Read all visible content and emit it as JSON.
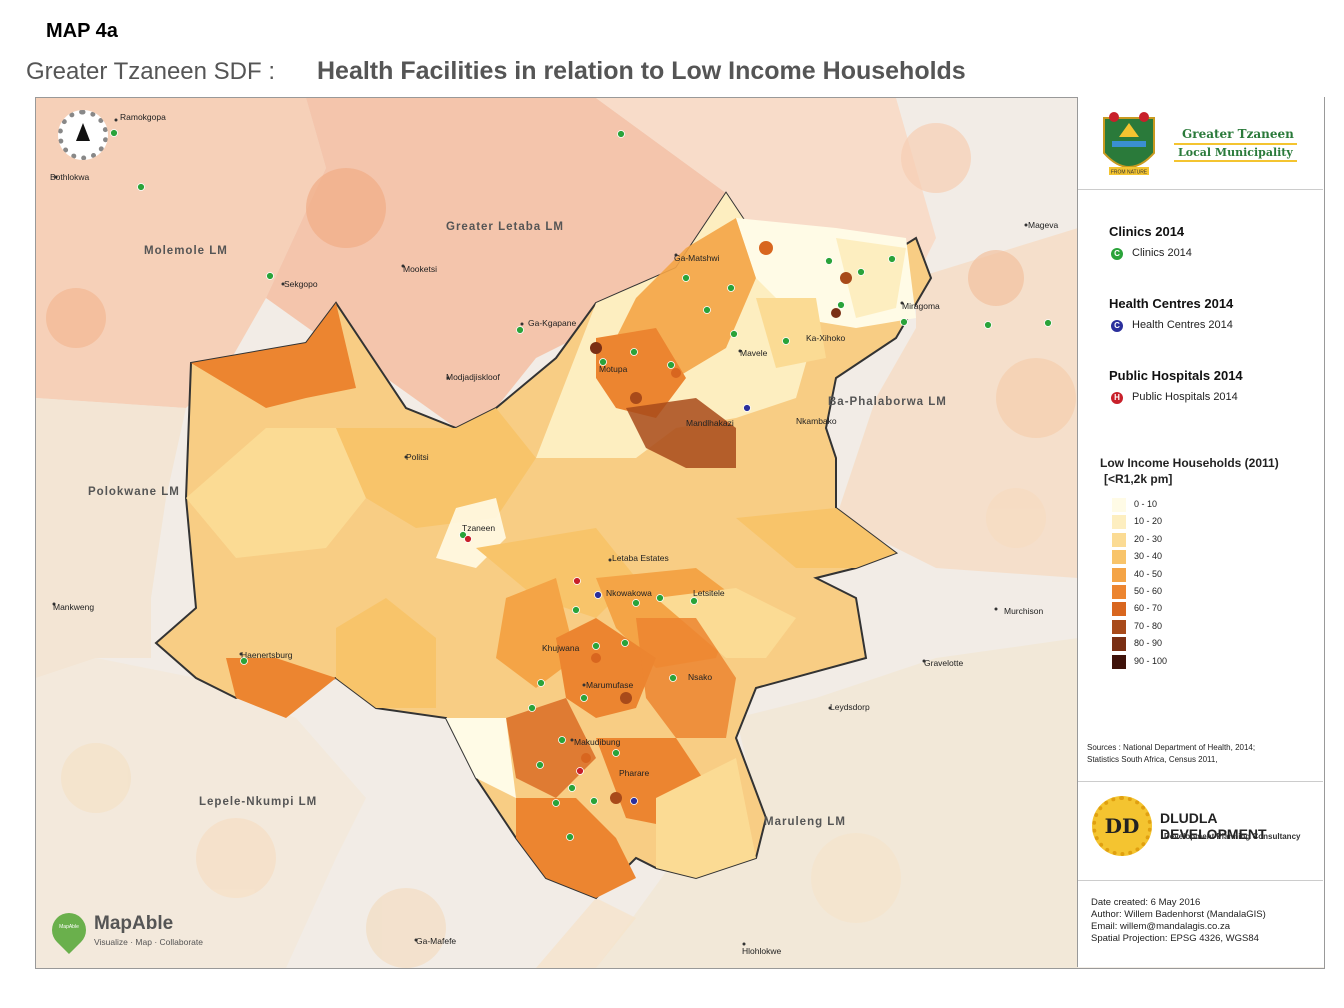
{
  "header": {
    "map_number": "MAP 4a",
    "subtitle": "Greater Tzaneen SDF :",
    "title": "Health Facilities  in relation to Low Income Households"
  },
  "map": {
    "lm_labels": [
      "Molemole LM",
      "Greater Letaba LM",
      "Polokwane LM",
      "Ba-Phalaborwa LM",
      "Lepele-Nkumpi LM",
      "Maruleng LM"
    ],
    "towns": [
      "Ramokgopa",
      "Bothlokwa",
      "Sekgopo",
      "Mooketsi",
      "Ga-Kgapane",
      "Modjadjiskloof",
      "Politsi",
      "Tzaneen",
      "Letaba Estates",
      "Nkowakowa",
      "Letsitele",
      "Khujwana",
      "Marumufase",
      "Nsako",
      "Makudibung",
      "Pharare",
      "Haenertsburg",
      "Mankweng",
      "Ga-Matshwi",
      "Motupa",
      "Mavele",
      "Ka-Xihoko",
      "Miragoma",
      "Mandlhakazi",
      "Nkambako",
      "Mageva",
      "Murchison",
      "Gravelotte",
      "Leydsdorp",
      "Ga-Mafefe",
      "Hlohlokwe"
    ],
    "compass_letter": "N",
    "mapable": {
      "brand": "MapAble",
      "tagline": "Visualize · Map · Collaborate",
      "badge": "MapAble"
    }
  },
  "legend": {
    "municipality_name_line1": "Greater Tzaneen",
    "municipality_name_line2": "Local Municipality",
    "crest_motto": "FROM NATURE",
    "clinics_title": "Clinics 2014",
    "clinics_label": "Clinics 2014",
    "clinics_symbol": "C",
    "health_centres_title": "Health Centres 2014",
    "health_centres_label": "Health Centres 2014",
    "health_centres_symbol": "C",
    "hospitals_title": "Public Hospitals 2014",
    "hospitals_label": "Public Hospitals 2014",
    "hospitals_symbol": "H",
    "income_title_line1": "Low Income Households (2011)",
    "income_title_line2": "[<R1,2k pm]",
    "ramp": [
      {
        "label": "0 - 10",
        "color": "#fffbe6"
      },
      {
        "label": "10 - 20",
        "color": "#fdeec0"
      },
      {
        "label": "20 - 30",
        "color": "#fbdb94"
      },
      {
        "label": "30 - 40",
        "color": "#f8c46a"
      },
      {
        "label": "40 - 50",
        "color": "#f4a446"
      },
      {
        "label": "50 - 60",
        "color": "#ec8530"
      },
      {
        "label": "60 - 70",
        "color": "#d8661f"
      },
      {
        "label": "70 - 80",
        "color": "#a84a1a"
      },
      {
        "label": "80 - 90",
        "color": "#7a2f14"
      },
      {
        "label": "90 - 100",
        "color": "#3f120a"
      }
    ],
    "sources_line1": "Sources : National  Department  of Health,  2014;",
    "sources_line2": "Statistics South Africa, Census 2011,",
    "consultant_initials": "DD",
    "consultant_name": "DLUDLA DEVELOPMENT",
    "consultant_tagline": "Development  Planning Consultancy",
    "date_created": "Date created:   6 May 2016",
    "author": "Author: Willem Badenhorst (MandalaGIS)",
    "email": "Email: willem@mandalagis.co.za",
    "projection": "Spatial Projection: EPSG 4326, WGS84"
  },
  "colors": {
    "clinic": "#2aa33a",
    "health_centre": "#2b2f9c",
    "hospital": "#c8202a",
    "boundary": "#333333"
  }
}
